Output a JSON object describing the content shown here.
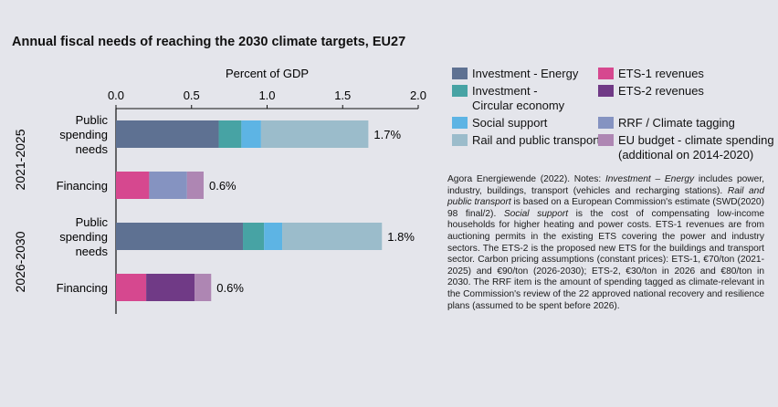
{
  "chart_data": {
    "type": "bar",
    "orientation": "horizontal",
    "stacked": true,
    "title": "Annual fiscal needs of reaching the 2030 climate targets, EU27",
    "xlabel": "Percent of GDP",
    "xlim": [
      0,
      2.0
    ],
    "xticks": [
      "0.0",
      "0.5",
      "1.0",
      "1.5",
      "2.0"
    ],
    "grid": false,
    "legend_position": "right",
    "groups": [
      "2021-2025",
      "2026-2030"
    ],
    "categories": [
      {
        "group": "2021-2025",
        "label": "Public spending needs",
        "lines": [
          "Public",
          "spending",
          "needs"
        ],
        "total_label": "1.7%"
      },
      {
        "group": "2021-2025",
        "label": "Financing",
        "lines": [
          "Financing"
        ],
        "total_label": "0.6%"
      },
      {
        "group": "2026-2030",
        "label": "Public spending needs",
        "lines": [
          "Public",
          "spending",
          "needs"
        ],
        "total_label": "1.8%"
      },
      {
        "group": "2026-2030",
        "label": "Financing",
        "lines": [
          "Financing"
        ],
        "total_label": "0.6%"
      }
    ],
    "series": [
      {
        "name": "Investment - Energy",
        "color": "#5e7192",
        "values": [
          0.68,
          0,
          0.84,
          0
        ]
      },
      {
        "name": "Investment - Circular economy",
        "color": "#47a3a4",
        "values": [
          0.15,
          0,
          0.14,
          0
        ]
      },
      {
        "name": "Social support",
        "color": "#5db4e4",
        "values": [
          0.13,
          0,
          0.12,
          0
        ]
      },
      {
        "name": "Rail and public transport",
        "color": "#9bbccb",
        "values": [
          0.71,
          0,
          0.66,
          0
        ]
      },
      {
        "name": "ETS-1 revenues",
        "color": "#d6488f",
        "values": [
          0,
          0.22,
          0,
          0.2
        ]
      },
      {
        "name": "ETS-2 revenues",
        "color": "#703a86",
        "values": [
          0,
          0,
          0,
          0.32
        ]
      },
      {
        "name": "RRF / Climate tagging",
        "color": "#8593c1",
        "values": [
          0,
          0.25,
          0,
          0
        ]
      },
      {
        "name": "EU budget - climate spending (additional on 2014-2020)",
        "color": "#ae86b3",
        "values": [
          0,
          0.11,
          0,
          0.11
        ]
      }
    ]
  },
  "legend": [
    {
      "lines": [
        "Investment - Energy"
      ],
      "color": "#5e7192"
    },
    {
      "lines": [
        "Investment -",
        "Circular economy"
      ],
      "color": "#47a3a4"
    },
    {
      "lines": [
        "Social support"
      ],
      "color": "#5db4e4"
    },
    {
      "lines": [
        "Rail and public transport"
      ],
      "color": "#9bbccb"
    },
    {
      "lines": [
        "ETS-1 revenues"
      ],
      "color": "#d6488f"
    },
    {
      "lines": [
        "ETS-2 revenues"
      ],
      "color": "#703a86"
    },
    {
      "lines": [
        "RRF / Climate tagging"
      ],
      "color": "#8593c1"
    },
    {
      "lines": [
        "EU budget - climate spending",
        "(additional on 2014-2020)"
      ],
      "color": "#ae86b3"
    }
  ],
  "notes": {
    "p1": "Agora Energiewende (2022). Notes: ",
    "i1": "Investment – Energy",
    "p2": " includes power, industry, buildings, transport (vehicles and recharging stations). ",
    "i2": "Rail and public transport",
    "p3": " is based on a European Commission's estimate (SWD(2020) 98 final/2). ",
    "i3": "Social support",
    "p4": " is the cost of compensating low-income households for higher heating and power costs. ETS-1 revenues are from auctioning permits in the existing ETS covering the power and industry sectors. The ETS-2 is the proposed new ETS for the buildings and transport sector. Carbon pricing assumptions (constant prices): ETS-1, €70/ton (2021-2025) and €90/ton (2026-2030); ETS-2, €30/ton in 2026 and €80/ton in 2030. The RRF item is the amount of spending tagged as climate-relevant in the Commission's review of the 22 approved national recovery and resilience plans (assumed to be spent before 2026)."
  }
}
